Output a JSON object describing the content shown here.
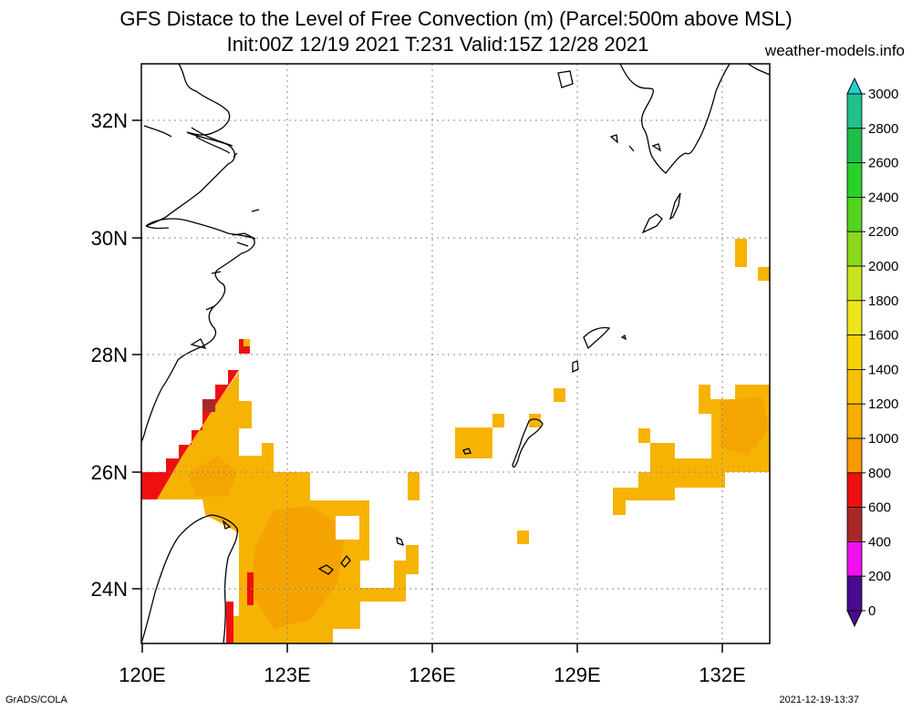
{
  "header": {
    "title_line1": "GFS Distace to the Level of Free Convection (m) (Parcel:500m above MSL)",
    "title_line2": "Init:00Z 12/19 2021 T:231 Valid:15Z 12/28 2021",
    "site": "weather-models.info"
  },
  "footer": {
    "left": "GrADS/COLA",
    "right": "2021-12-19-13:37"
  },
  "map": {
    "lat_labels": [
      "32N",
      "30N",
      "28N",
      "26N",
      "24N"
    ],
    "lon_labels": [
      "120E",
      "123E",
      "126E",
      "129E",
      "132E"
    ]
  },
  "colorbar": {
    "labels": [
      "3000",
      "2800",
      "2600",
      "2400",
      "2200",
      "2000",
      "1800",
      "1600",
      "1400",
      "1200",
      "1000",
      "800",
      "600",
      "400",
      "200",
      "0"
    ],
    "colors": [
      "#20d0d0",
      "#22c08a",
      "#1fbf4a",
      "#2ad02a",
      "#55d21e",
      "#8bd81e",
      "#c8e41e",
      "#ece51e",
      "#f4d20a",
      "#f8c005",
      "#f7ae02",
      "#f59a00",
      "#ee1010",
      "#a82828",
      "#f010f0",
      "#4a0a90"
    ]
  }
}
